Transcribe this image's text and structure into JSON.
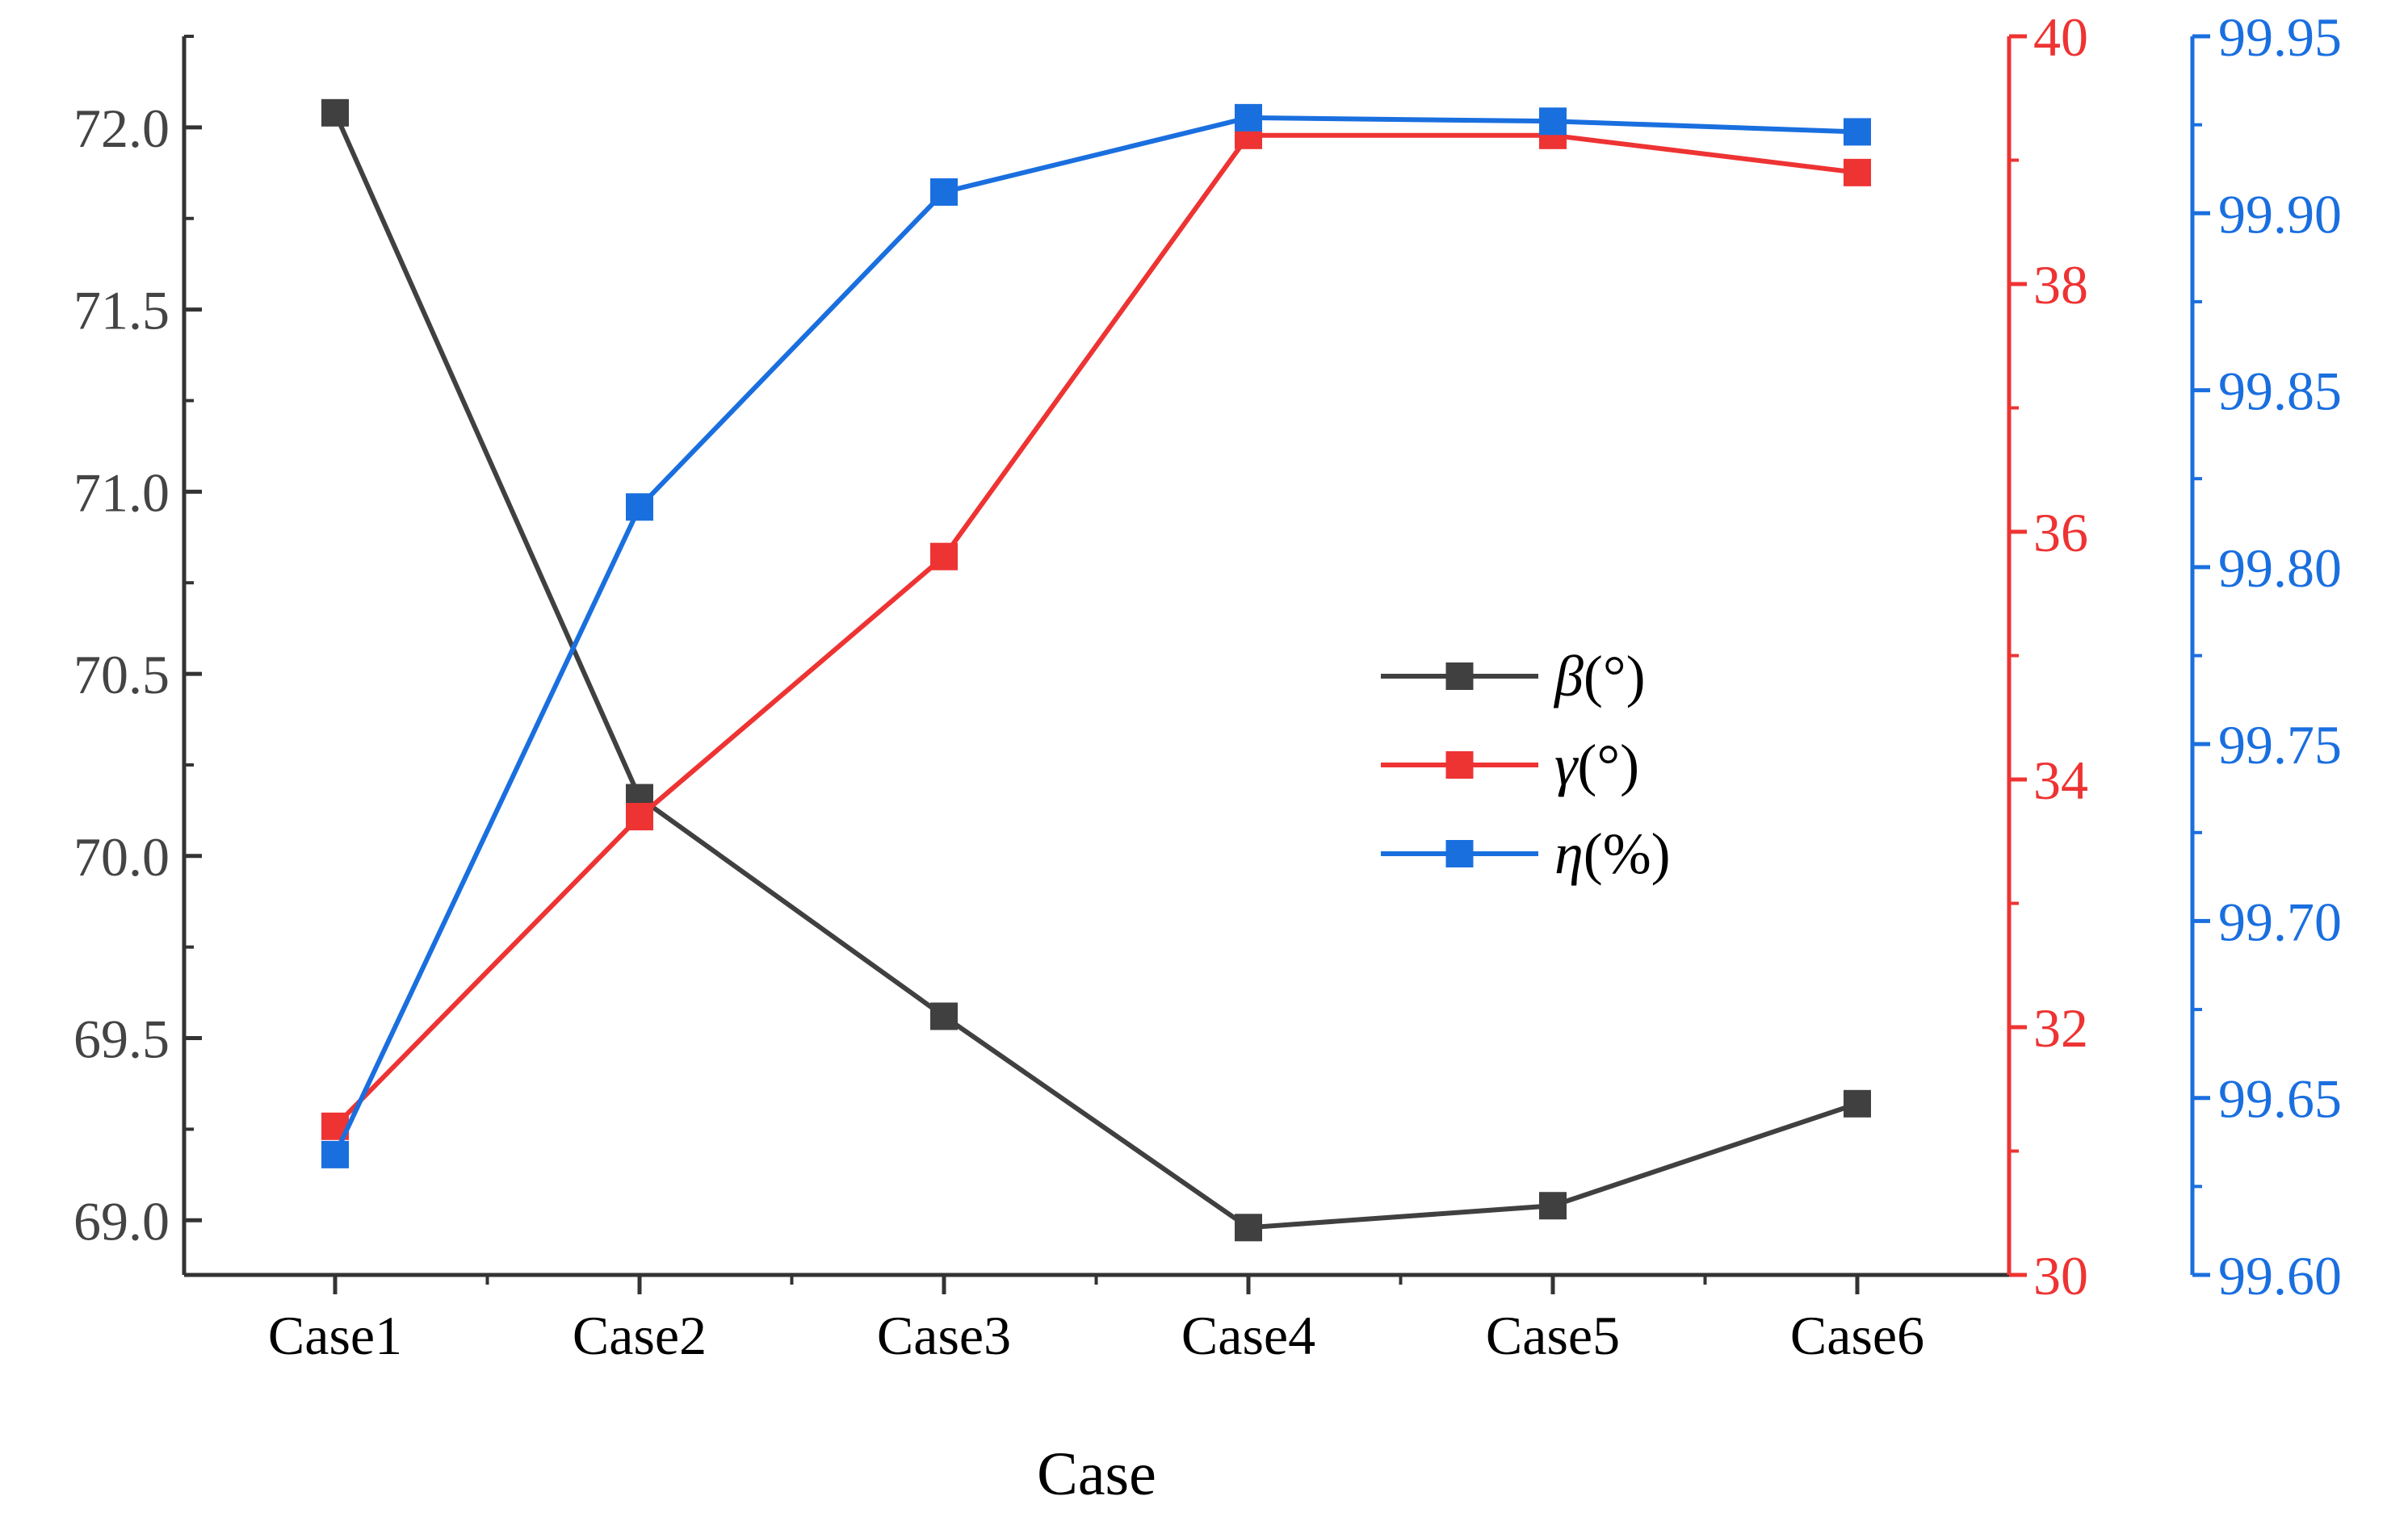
{
  "chart_data": {
    "type": "line",
    "title": "",
    "xlabel": "Case",
    "categories": [
      "Case1",
      "Case2",
      "Case3",
      "Case4",
      "Case5",
      "Case6"
    ],
    "axes": {
      "left": {
        "ylim": [
          68.85,
          72.25
        ],
        "ticks": [
          "69.0",
          "69.5",
          "70.0",
          "70.5",
          "71.0",
          "71.5",
          "72.0"
        ],
        "color": "#444444"
      },
      "right1": {
        "ylim": [
          30,
          40
        ],
        "ticks": [
          "30",
          "32",
          "34",
          "36",
          "38",
          "40"
        ],
        "color": "#ee3333"
      },
      "right2": {
        "ylim": [
          99.6,
          99.95
        ],
        "ticks": [
          "99.60",
          "99.65",
          "99.70",
          "99.75",
          "99.80",
          "99.85",
          "99.90",
          "99.95"
        ],
        "color": "#1a6fdf"
      }
    },
    "series": [
      {
        "name": "β(°)",
        "symbol": "β",
        "unit": "(°)",
        "axis": "left",
        "color": "#404040",
        "values": [
          72.04,
          70.16,
          69.56,
          68.98,
          69.04,
          69.32
        ]
      },
      {
        "name": "γ(°)",
        "symbol": "γ",
        "unit": "(°)",
        "axis": "right1",
        "color": "#ee3333",
        "values": [
          31.2,
          33.7,
          35.8,
          39.2,
          39.2,
          38.9
        ]
      },
      {
        "name": "η(%)",
        "symbol": "η",
        "unit": "(%)",
        "axis": "right2",
        "color": "#1a6fdf",
        "values": [
          99.634,
          99.817,
          99.906,
          99.927,
          99.926,
          99.923
        ]
      }
    ],
    "legend": {
      "position": "center-right"
    }
  }
}
